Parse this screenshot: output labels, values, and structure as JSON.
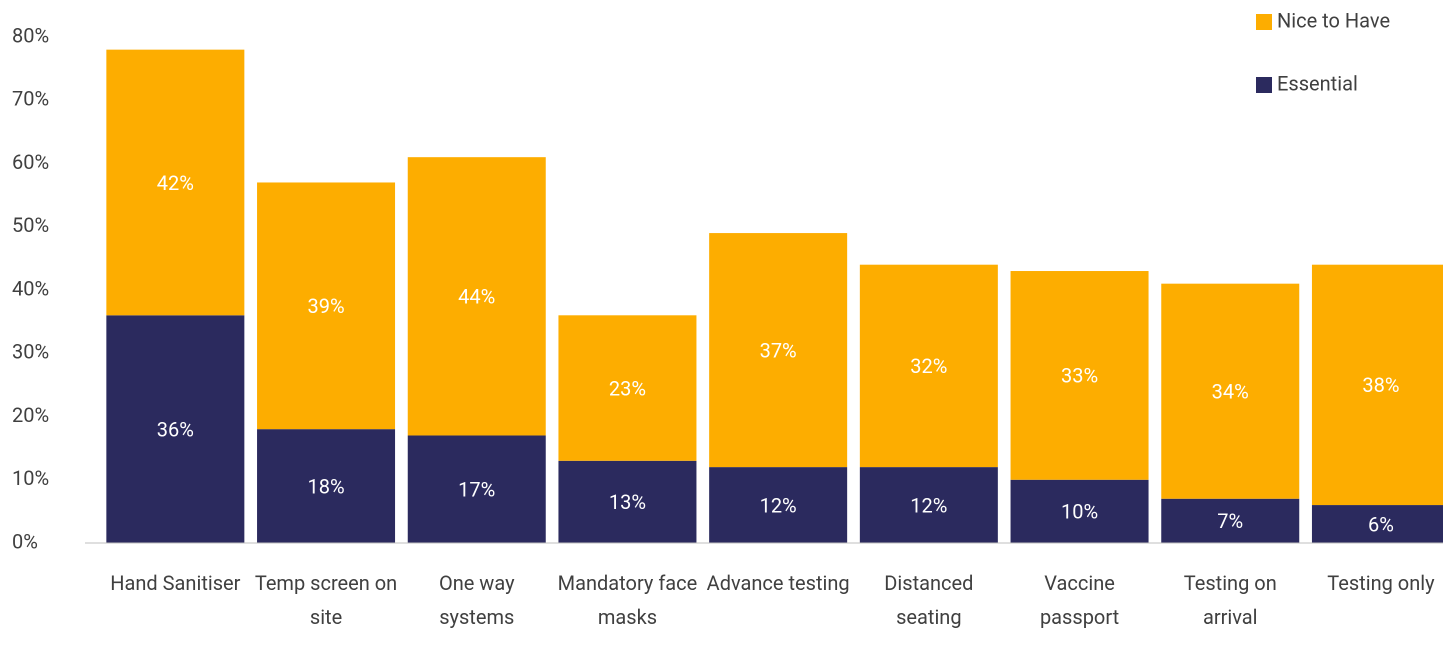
{
  "chart_data": {
    "type": "stacked_bar",
    "categories": [
      "Hand Sanitiser",
      "Temp screen on site",
      "One way systems",
      "Mandatory face masks",
      "Advance testing",
      "Distanced seating",
      "Vaccine passport",
      "Testing on arrival",
      "Testing only"
    ],
    "series": [
      {
        "name": "Essential",
        "color": "#2b2a5e",
        "values": [
          36,
          18,
          17,
          13,
          12,
          12,
          10,
          7,
          6
        ],
        "value_labels": [
          "36%",
          "18%",
          "17%",
          "13%",
          "12%",
          "12%",
          "10%",
          "7%",
          "6%"
        ]
      },
      {
        "name": "Nice to Have",
        "color": "#fdad00",
        "values": [
          42,
          39,
          44,
          23,
          37,
          32,
          33,
          34,
          38
        ],
        "value_labels": [
          "42%",
          "39%",
          "44%",
          "23%",
          "37%",
          "32%",
          "33%",
          "34%",
          "38%"
        ]
      }
    ],
    "ylim": [
      0,
      80
    ],
    "yticks": [
      {
        "value": 0,
        "label": "0%"
      },
      {
        "value": 10,
        "label": "10%"
      },
      {
        "value": 20,
        "label": "20%"
      },
      {
        "value": 30,
        "label": "30%"
      },
      {
        "value": 40,
        "label": "40%"
      },
      {
        "value": 50,
        "label": "50%"
      },
      {
        "value": 60,
        "label": "60%"
      },
      {
        "value": 70,
        "label": "70%"
      },
      {
        "value": 80,
        "label": "80%"
      }
    ],
    "grid": false,
    "legend": "top-right"
  }
}
